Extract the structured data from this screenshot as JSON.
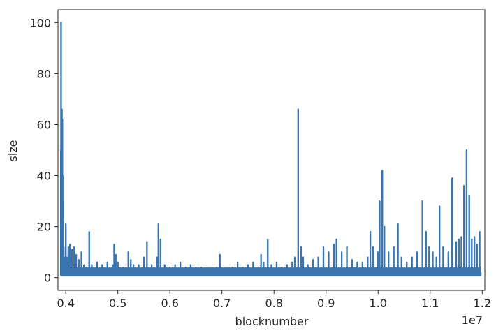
{
  "chart_data": {
    "type": "line",
    "title": "",
    "xlabel": "blocknumber",
    "ylabel": "size",
    "x_offset_text": "1e7",
    "xlim": [
      0.385,
      1.205
    ],
    "ylim": [
      -5,
      105
    ],
    "xticks": [
      0.4,
      0.5,
      0.6,
      0.7,
      0.8,
      0.9,
      1.0,
      1.1,
      1.2
    ],
    "xtick_labels": [
      "0.4",
      "0.5",
      "0.6",
      "0.7",
      "0.8",
      "0.9",
      "1.0",
      "1.1",
      "1.2"
    ],
    "yticks": [
      0,
      20,
      40,
      60,
      80,
      100
    ],
    "ytick_labels": [
      "0",
      "20",
      "40",
      "60",
      "80",
      "100"
    ],
    "grid": false,
    "baseline": 1,
    "series": [
      {
        "color": "#3a75af",
        "points": [
          [
            0.39,
            1
          ],
          [
            0.3905,
            50
          ],
          [
            0.391,
            100
          ],
          [
            0.3915,
            66
          ],
          [
            0.392,
            55
          ],
          [
            0.3925,
            66
          ],
          [
            0.393,
            45
          ],
          [
            0.3935,
            62
          ],
          [
            0.394,
            40
          ],
          [
            0.3945,
            30
          ],
          [
            0.395,
            22
          ],
          [
            0.396,
            12
          ],
          [
            0.397,
            8
          ],
          [
            0.398,
            6
          ],
          [
            0.4,
            21
          ],
          [
            0.402,
            8
          ],
          [
            0.405,
            12
          ],
          [
            0.408,
            13
          ],
          [
            0.412,
            11
          ],
          [
            0.416,
            12
          ],
          [
            0.42,
            9
          ],
          [
            0.425,
            7
          ],
          [
            0.43,
            10
          ],
          [
            0.435,
            5
          ],
          [
            0.44,
            4
          ],
          [
            0.445,
            18
          ],
          [
            0.45,
            5
          ],
          [
            0.46,
            6
          ],
          [
            0.47,
            5
          ],
          [
            0.48,
            6
          ],
          [
            0.49,
            5
          ],
          [
            0.493,
            13
          ],
          [
            0.496,
            9
          ],
          [
            0.5,
            6
          ],
          [
            0.51,
            4
          ],
          [
            0.52,
            10
          ],
          [
            0.525,
            7
          ],
          [
            0.53,
            5
          ],
          [
            0.54,
            5
          ],
          [
            0.55,
            8
          ],
          [
            0.556,
            14
          ],
          [
            0.565,
            5
          ],
          [
            0.575,
            8
          ],
          [
            0.578,
            21
          ],
          [
            0.582,
            15
          ],
          [
            0.59,
            5
          ],
          [
            0.6,
            4
          ],
          [
            0.61,
            5
          ],
          [
            0.62,
            6
          ],
          [
            0.63,
            4
          ],
          [
            0.64,
            5
          ],
          [
            0.65,
            4
          ],
          [
            0.66,
            4
          ],
          [
            0.67,
            3
          ],
          [
            0.68,
            3
          ],
          [
            0.69,
            4
          ],
          [
            0.696,
            9
          ],
          [
            0.705,
            3
          ],
          [
            0.72,
            4
          ],
          [
            0.73,
            6
          ],
          [
            0.74,
            4
          ],
          [
            0.75,
            5
          ],
          [
            0.76,
            6
          ],
          [
            0.77,
            4
          ],
          [
            0.775,
            9
          ],
          [
            0.78,
            6
          ],
          [
            0.788,
            15
          ],
          [
            0.795,
            5
          ],
          [
            0.805,
            6
          ],
          [
            0.815,
            4
          ],
          [
            0.825,
            5
          ],
          [
            0.835,
            6
          ],
          [
            0.84,
            8
          ],
          [
            0.8465,
            66
          ],
          [
            0.852,
            12
          ],
          [
            0.856,
            8
          ],
          [
            0.865,
            5
          ],
          [
            0.875,
            7
          ],
          [
            0.885,
            8
          ],
          [
            0.895,
            12
          ],
          [
            0.905,
            10
          ],
          [
            0.915,
            13
          ],
          [
            0.92,
            15
          ],
          [
            0.93,
            10
          ],
          [
            0.94,
            12
          ],
          [
            0.95,
            7
          ],
          [
            0.96,
            6
          ],
          [
            0.97,
            6
          ],
          [
            0.98,
            8
          ],
          [
            0.985,
            18
          ],
          [
            0.99,
            12
          ],
          [
            1.0,
            10
          ],
          [
            1.003,
            30
          ],
          [
            1.008,
            42
          ],
          [
            1.012,
            20
          ],
          [
            1.02,
            10
          ],
          [
            1.03,
            12
          ],
          [
            1.038,
            21
          ],
          [
            1.045,
            8
          ],
          [
            1.055,
            6
          ],
          [
            1.065,
            8
          ],
          [
            1.075,
            10
          ],
          [
            1.085,
            30
          ],
          [
            1.092,
            18
          ],
          [
            1.098,
            12
          ],
          [
            1.105,
            10
          ],
          [
            1.112,
            8
          ],
          [
            1.118,
            28
          ],
          [
            1.125,
            12
          ],
          [
            1.135,
            10
          ],
          [
            1.142,
            39
          ],
          [
            1.15,
            14
          ],
          [
            1.155,
            15
          ],
          [
            1.16,
            16
          ],
          [
            1.165,
            36
          ],
          [
            1.17,
            50
          ],
          [
            1.175,
            32
          ],
          [
            1.18,
            15
          ],
          [
            1.185,
            16
          ],
          [
            1.19,
            13
          ],
          [
            1.195,
            18
          ],
          [
            1.197,
            2
          ]
        ]
      }
    ]
  }
}
